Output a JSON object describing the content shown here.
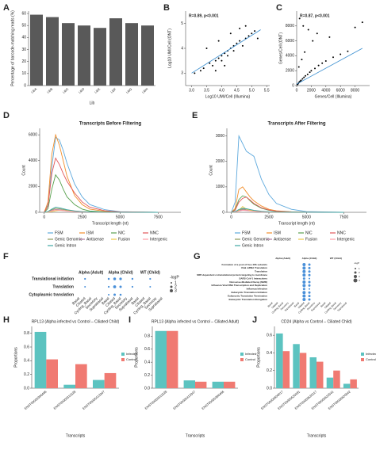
{
  "chart_data": [
    {
      "type": "bar",
      "label": "A",
      "ylabel": "Percentage of barcode-matching reads (%)",
      "xlabel": "Lib",
      "categories": [
        "LibA",
        "LibB",
        "LibC",
        "LibD",
        "LibE",
        "LibF",
        "LibG",
        "LibH"
      ],
      "values": [
        59,
        57,
        52,
        50,
        48,
        56,
        52,
        50
      ],
      "color": "#595959",
      "ylim": [
        0,
        62
      ],
      "yticks": [
        0,
        10,
        20,
        30,
        40,
        50,
        60
      ]
    },
    {
      "type": "scatter",
      "label": "B",
      "annotation": "R=0.89, p<0.001",
      "xlabel": "Log10 UMI/Cell (Illumina)",
      "ylabel": "Log10 UMI/Cell (ONT)",
      "x": [
        3.1,
        3.3,
        3.4,
        3.6,
        3.7,
        3.8,
        3.9,
        4.0,
        4.0,
        4.1,
        4.2,
        4.2,
        4.3,
        4.4,
        4.4,
        4.5,
        4.6,
        4.7,
        4.8,
        4.9,
        5.0,
        5.1,
        3.5,
        3.9,
        4.3,
        4.6,
        4.1,
        3.8,
        4.8,
        5.2
      ],
      "y": [
        3.0,
        3.1,
        3.2,
        3.4,
        3.3,
        3.5,
        3.6,
        3.7,
        3.5,
        3.8,
        3.9,
        3.7,
        4.0,
        4.1,
        3.9,
        4.2,
        4.3,
        4.1,
        4.4,
        4.5,
        4.6,
        4.7,
        4.0,
        4.3,
        4.6,
        4.8,
        3.3,
        3.1,
        4.9,
        4.4
      ],
      "color": "#000000",
      "fit": {
        "x": [
          3.0,
          5.3
        ],
        "y": [
          3.0,
          4.75
        ],
        "color": "#3b8fd0"
      },
      "xlim": [
        2.8,
        5.6
      ],
      "xticks": [
        {
          "value": 3,
          "label": "3.0"
        },
        3.5,
        {
          "value": 4,
          "label": "4.0"
        },
        4.5,
        {
          "value": 5,
          "label": "5.0"
        },
        5.5
      ],
      "ylim": [
        2.5,
        5.5
      ],
      "yticks": [
        3,
        4,
        5
      ]
    },
    {
      "type": "scatter",
      "label": "C",
      "annotation": "R=0.87, p<0.001",
      "xlabel": "Genes/Cell (Illumina)",
      "ylabel": "Genes/Cell (ONT)",
      "x": [
        100,
        200,
        300,
        400,
        500,
        600,
        800,
        1000,
        1200,
        1500,
        1800,
        2000,
        2500,
        3000,
        3500,
        4000,
        5000,
        6000,
        7000,
        300,
        700,
        1100,
        2200,
        2800,
        400,
        900,
        1600,
        4500,
        8000,
        9000
      ],
      "y": [
        150,
        250,
        400,
        500,
        600,
        700,
        900,
        1100,
        1300,
        1500,
        1800,
        2000,
        2300,
        2700,
        3000,
        3300,
        3800,
        4200,
        4600,
        2500,
        3500,
        4500,
        6000,
        7000,
        9000,
        8000,
        7500,
        6500,
        7800,
        8500
      ],
      "color": "#000000",
      "fit": {
        "x": [
          0,
          9000
        ],
        "y": [
          200,
          5000
        ],
        "color": "#3b8fd0"
      },
      "xlim": [
        0,
        10000
      ],
      "xticks": [
        0,
        2000,
        4000,
        6000,
        8000
      ],
      "ylim": [
        0,
        10000
      ],
      "yticks": [
        0,
        2000,
        4000,
        6000,
        8000
      ]
    },
    {
      "type": "line",
      "label": "D",
      "title": "Transcripts Before Filtering",
      "xlabel": "Transcript length (nt)",
      "ylabel": "Count",
      "x": [
        0,
        250,
        500,
        750,
        1000,
        1250,
        1500,
        2000,
        2500,
        3000,
        4000,
        5000,
        7500
      ],
      "series": [
        {
          "name": "FSM",
          "color": "#5ea9dd",
          "values": [
            0,
            600,
            3500,
            5800,
            5600,
            4800,
            3800,
            2200,
            1200,
            600,
            200,
            50,
            0
          ]
        },
        {
          "name": "ISM",
          "color": "#f28e2b",
          "values": [
            0,
            800,
            4500,
            6000,
            5200,
            4000,
            2800,
            1300,
            600,
            250,
            80,
            20,
            0
          ]
        },
        {
          "name": "NIC",
          "color": "#59a14f",
          "values": [
            0,
            300,
            1800,
            2900,
            2500,
            1800,
            1200,
            600,
            250,
            100,
            30,
            10,
            0
          ]
        },
        {
          "name": "NNC",
          "color": "#e15759",
          "values": [
            0,
            500,
            3000,
            4200,
            3700,
            3000,
            2400,
            1500,
            800,
            400,
            120,
            30,
            0
          ]
        },
        {
          "name": "Genic Genomic",
          "color": "#8c9a5b",
          "values": [
            0,
            50,
            200,
            300,
            280,
            220,
            160,
            90,
            50,
            25,
            10,
            5,
            0
          ]
        },
        {
          "name": "Antisense",
          "color": "#b07aa1",
          "values": [
            0,
            40,
            150,
            220,
            200,
            160,
            120,
            70,
            40,
            20,
            8,
            3,
            0
          ]
        },
        {
          "name": "Fusion",
          "color": "#edc948",
          "values": [
            0,
            10,
            60,
            120,
            150,
            140,
            120,
            90,
            60,
            35,
            15,
            5,
            0
          ]
        },
        {
          "name": "Intergenic",
          "color": "#ff9da7",
          "values": [
            0,
            30,
            120,
            180,
            160,
            130,
            100,
            60,
            30,
            15,
            5,
            2,
            0
          ]
        },
        {
          "name": "Genic Intron",
          "color": "#3fa7a3",
          "values": [
            0,
            60,
            250,
            400,
            350,
            280,
            200,
            110,
            60,
            30,
            10,
            3,
            0
          ]
        }
      ],
      "xlim": [
        -300,
        9000
      ],
      "xticks": [
        0,
        2500,
        5000,
        7500
      ],
      "ylim": [
        0,
        6500
      ],
      "yticks": [
        0,
        2000,
        4000,
        6000
      ]
    },
    {
      "type": "line",
      "label": "E",
      "title": "Transcripts After Filtering",
      "xlabel": "Transcript length (nt)",
      "ylabel": "Count",
      "x": [
        0,
        250,
        500,
        750,
        1000,
        1250,
        1500,
        2000,
        2500,
        3000,
        4000,
        5000,
        7500
      ],
      "series": [
        {
          "name": "FSM",
          "color": "#5ea9dd",
          "values": [
            0,
            400,
            3000,
            2700,
            2400,
            2300,
            2200,
            1300,
            700,
            350,
            120,
            30,
            0
          ]
        },
        {
          "name": "ISM",
          "color": "#f28e2b",
          "values": [
            0,
            150,
            900,
            1000,
            800,
            600,
            450,
            250,
            120,
            60,
            20,
            5,
            0
          ]
        },
        {
          "name": "NIC",
          "color": "#59a14f",
          "values": [
            0,
            100,
            500,
            650,
            600,
            450,
            320,
            160,
            80,
            40,
            12,
            3,
            0
          ]
        },
        {
          "name": "NNC",
          "color": "#e15759",
          "values": [
            0,
            80,
            400,
            550,
            600,
            480,
            350,
            180,
            90,
            45,
            15,
            4,
            0
          ]
        },
        {
          "name": "Genic Genomic",
          "color": "#8c9a5b",
          "values": [
            0,
            20,
            90,
            130,
            120,
            90,
            60,
            35,
            18,
            9,
            3,
            1,
            0
          ]
        },
        {
          "name": "Antisense",
          "color": "#b07aa1",
          "values": [
            0,
            15,
            70,
            100,
            90,
            70,
            50,
            28,
            14,
            7,
            2,
            1,
            0
          ]
        },
        {
          "name": "Fusion",
          "color": "#edc948",
          "values": [
            0,
            10,
            70,
            230,
            120,
            80,
            50,
            25,
            12,
            6,
            2,
            1,
            0
          ]
        },
        {
          "name": "Intergenic",
          "color": "#ff9da7",
          "values": [
            0,
            10,
            50,
            80,
            70,
            55,
            40,
            22,
            10,
            5,
            2,
            0,
            0
          ]
        },
        {
          "name": "Genic Intron",
          "color": "#3fa7a3",
          "values": [
            0,
            25,
            110,
            160,
            140,
            110,
            80,
            45,
            22,
            11,
            4,
            1,
            0
          ]
        }
      ],
      "xlim": [
        -300,
        9000
      ],
      "xticks": [
        0,
        2500,
        5000,
        7500
      ],
      "ylim": [
        0,
        3300
      ],
      "yticks": [
        0,
        1000,
        2000,
        3000
      ]
    },
    {
      "type": "dot",
      "label": "F",
      "groups": [
        "Alpha (Adult)",
        "Alpha (Child)",
        "WT (Child)"
      ],
      "columns": [
        "Basal",
        "Ciliated",
        "Cycling_Basal",
        "Secretory",
        "Suprabasal"
      ],
      "rows": [
        "Translational initiation",
        "Translation",
        "Cytoplasmic translation"
      ],
      "values": [
        [
          null,
          1.2,
          null,
          null,
          null,
          1.5,
          2.5,
          2.2,
          null,
          1.4,
          null,
          null,
          1.2,
          null,
          null
        ],
        [
          null,
          1.0,
          null,
          null,
          null,
          1.3,
          2.8,
          2.0,
          null,
          1.2,
          null,
          null,
          1.0,
          null,
          null
        ],
        [
          null,
          null,
          null,
          null,
          null,
          1.1,
          2.0,
          1.6,
          null,
          null,
          null,
          null,
          null,
          null,
          null
        ]
      ],
      "color": "#4a90d9",
      "legend_title": "-logP",
      "size_ticks": [
        1,
        2,
        3
      ]
    },
    {
      "type": "dot",
      "label": "G",
      "groups": [
        "Alpha (Adult)",
        "Alpha (Child)",
        "WT (Child)"
      ],
      "columns": [
        "Basal",
        "Ciliated",
        "Cycling_Basal",
        "Secretory",
        "Suprabasal"
      ],
      "rows": [
        "Formation of a pool of free 40S subunits",
        "Viral mRNA Translation",
        "Translation",
        "SRP-dependent cotranslational protein targeting to membrane",
        "SARS-CoV-1 Interactions",
        "Nonsense-Mediated Decay (NMD)",
        "Influenza Viral RNA Transcription and Replication",
        "Influenza Infection",
        "Eukaryotic Translation Initiation",
        "Eukaryotic Translation Termination",
        "Eukaryotic Translation Elongation"
      ],
      "values": [
        [
          null,
          null,
          null,
          null,
          null,
          null,
          3,
          2,
          null,
          null,
          null,
          null,
          null,
          null,
          null
        ],
        [
          null,
          null,
          null,
          null,
          null,
          null,
          3,
          2,
          null,
          null,
          null,
          null,
          null,
          null,
          null
        ],
        [
          null,
          null,
          null,
          null,
          null,
          null,
          3,
          2,
          null,
          null,
          null,
          null,
          null,
          null,
          null
        ],
        [
          null,
          null,
          null,
          null,
          null,
          null,
          3,
          2,
          null,
          null,
          null,
          null,
          null,
          null,
          null
        ],
        [
          null,
          null,
          null,
          null,
          null,
          null,
          2,
          1,
          null,
          null,
          null,
          null,
          null,
          null,
          null
        ],
        [
          null,
          null,
          null,
          null,
          null,
          null,
          3,
          2,
          null,
          null,
          null,
          null,
          null,
          null,
          null
        ],
        [
          null,
          null,
          null,
          null,
          null,
          null,
          3,
          2,
          null,
          null,
          null,
          null,
          null,
          null,
          null
        ],
        [
          null,
          null,
          null,
          null,
          null,
          null,
          2,
          1,
          null,
          null,
          null,
          null,
          null,
          null,
          null
        ],
        [
          null,
          null,
          null,
          null,
          null,
          null,
          3,
          2,
          null,
          null,
          null,
          null,
          null,
          null,
          null
        ],
        [
          null,
          null,
          null,
          null,
          null,
          null,
          3,
          2,
          null,
          null,
          null,
          null,
          null,
          null,
          null
        ],
        [
          null,
          null,
          null,
          null,
          null,
          null,
          3,
          2,
          null,
          null,
          null,
          null,
          null,
          null,
          null
        ]
      ],
      "color": "#4a90d9",
      "legend_title": "-logP",
      "size_ticks": [
        1,
        2,
        3,
        4
      ]
    },
    {
      "type": "bar",
      "label": "H",
      "title": "RPL13 (Alpha infected vs Control – Ciliated Child)",
      "xlabel": "Transcripts",
      "ylabel": "Proportions",
      "categories": [
        "ENST00000396466",
        "ENST00000311528",
        "ENST00000413347"
      ],
      "series": [
        {
          "name": "Infected",
          "color": "#5cc3c0",
          "values": [
            0.82,
            0.05,
            0.12
          ]
        },
        {
          "name": "Control",
          "color": "#f07a72",
          "values": [
            0.42,
            0.35,
            0.22
          ]
        }
      ],
      "ylim": [
        0,
        0.9
      ],
      "yticks": [
        {
          "value": 0,
          "label": "0.0"
        },
        0.2,
        0.4,
        0.6,
        0.8
      ]
    },
    {
      "type": "bar",
      "label": "I",
      "title": "RPL13 (Alpha infected vs Control – Ciliated Adult)",
      "xlabel": "Transcripts",
      "ylabel": "Proportions",
      "categories": [
        "ENST00000311528",
        "ENST00000413347",
        "ENST00000396466"
      ],
      "series": [
        {
          "name": "Infected",
          "color": "#5cc3c0",
          "values": [
            0.88,
            0.12,
            0.1
          ]
        },
        {
          "name": "Control",
          "color": "#f07a72",
          "values": [
            0.88,
            0.1,
            0.1
          ]
        }
      ],
      "ylim": [
        0,
        0.95
      ],
      "yticks": [
        {
          "value": 0,
          "label": "0.0"
        },
        0.2,
        0.4,
        0.6,
        0.8
      ]
    },
    {
      "type": "bar",
      "label": "J",
      "title": "CD24 (Alpha vs Control – Ciliated Child)",
      "xlabel": "Transcripts",
      "ylabel": "Proportions",
      "categories": [
        "ENST00000606017",
        "ENST00000620481",
        "ENST00000620117",
        "ENST00000622541",
        "ENST00000620542"
      ],
      "series": [
        {
          "name": "Infected",
          "color": "#5cc3c0",
          "values": [
            0.62,
            0.5,
            0.35,
            0.12,
            0.05
          ]
        },
        {
          "name": "Control",
          "color": "#f07a72",
          "values": [
            0.42,
            0.4,
            0.3,
            0.2,
            0.1
          ]
        }
      ],
      "ylim": [
        0,
        0.7
      ],
      "yticks": [
        {
          "value": 0,
          "label": "0.0"
        },
        0.2,
        0.4,
        0.6
      ]
    }
  ]
}
